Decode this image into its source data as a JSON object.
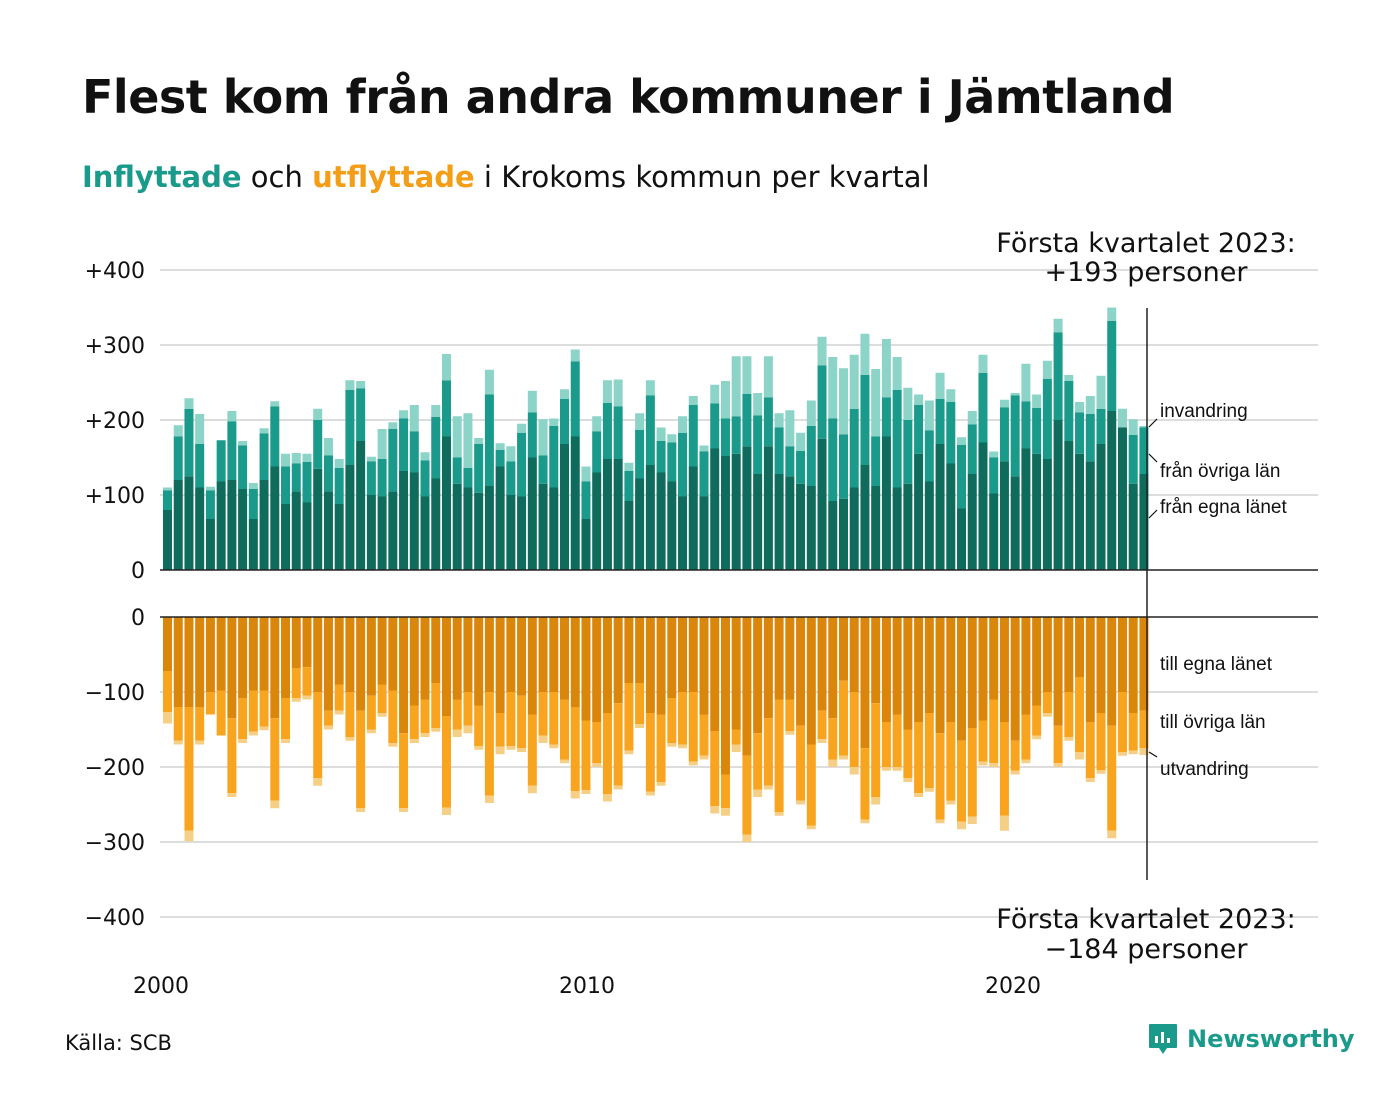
{
  "title": "Flest kom från andra kommuner i Jämtland",
  "subtitle": {
    "part1": "Inflyttade",
    "part2": " och ",
    "part3": "utflyttade",
    "part4": " i Krokoms kommun per kvartal"
  },
  "source": "Källa: SCB",
  "brand": "Newsworthy",
  "colors": {
    "in_own": "#0f6b5c",
    "in_other": "#1a9a8a",
    "in_imm": "#8cd3c8",
    "out_own": "#d9860b",
    "out_other": "#f9a41e",
    "out_emi": "#f6cf87",
    "grid": "#dddddd",
    "axis": "#222222"
  },
  "chart_data": {
    "type": "bar",
    "stacked": true,
    "x_start": "2000-Q1",
    "x_end": "2023-Q1",
    "x_ticks": [
      "2000",
      "2010",
      "2020"
    ],
    "y_ticks_top": [
      "+400",
      "+300",
      "+200",
      "+100",
      "0"
    ],
    "y_ticks_bottom": [
      "0",
      "−100",
      "−200",
      "−300",
      "−400"
    ],
    "ylim_top": [
      0,
      400
    ],
    "ylim_bottom": [
      -400,
      0
    ],
    "grid": true,
    "annotation_top": [
      "Första kvartalet 2023:",
      "+193 personer"
    ],
    "annotation_bottom": [
      "Första kvartalet 2023:",
      "−184 personer"
    ],
    "inflow_series_labels": [
      "invandring",
      "från övriga län",
      "från egna länet"
    ],
    "outflow_series_labels": [
      "till egna länet",
      "till övriga län",
      "utvandring"
    ],
    "inflow": {
      "from_own_county": [
        80,
        120,
        125,
        110,
        68,
        118,
        120,
        108,
        68,
        120,
        138,
        88,
        105,
        90,
        135,
        105,
        88,
        140,
        172,
        100,
        98,
        105,
        132,
        130,
        98,
        122,
        178,
        115,
        110,
        103,
        112,
        138,
        100,
        98,
        150,
        115,
        110,
        168,
        178,
        68,
        130,
        148,
        148,
        92,
        122,
        140,
        130,
        118,
        98,
        138,
        98,
        162,
        152,
        155,
        165,
        128,
        165,
        128,
        125,
        115,
        112,
        175,
        92,
        95,
        110,
        140,
        112,
        178,
        110,
        115,
        155,
        118,
        168,
        142,
        82,
        128,
        170,
        102,
        145,
        125,
        162,
        155,
        148,
        200,
        172,
        155,
        145,
        168,
        212,
        190,
        115,
        128
      ],
      "from_other_counties": [
        26,
        58,
        90,
        58,
        38,
        55,
        78,
        58,
        40,
        62,
        80,
        50,
        37,
        54,
        65,
        48,
        48,
        100,
        70,
        45,
        50,
        83,
        70,
        55,
        48,
        82,
        75,
        35,
        26,
        65,
        122,
        22,
        45,
        85,
        60,
        38,
        82,
        60,
        100,
        50,
        55,
        75,
        70,
        40,
        65,
        93,
        42,
        52,
        85,
        82,
        60,
        60,
        50,
        50,
        70,
        78,
        65,
        62,
        40,
        44,
        80,
        98,
        110,
        86,
        105,
        120,
        66,
        52,
        130,
        85,
        65,
        68,
        60,
        82,
        85,
        66,
        93,
        48,
        72,
        108,
        63,
        61,
        107,
        117,
        80,
        55,
        63,
        47,
        120,
        0,
        65,
        62
      ],
      "immigration": [
        4,
        15,
        14,
        40,
        5,
        0,
        14,
        6,
        8,
        7,
        7,
        17,
        14,
        11,
        15,
        23,
        12,
        13,
        10,
        6,
        40,
        9,
        11,
        35,
        11,
        16,
        35,
        55,
        73,
        8,
        33,
        9,
        20,
        12,
        29,
        48,
        10,
        13,
        16,
        20,
        20,
        30,
        36,
        11,
        22,
        20,
        18,
        11,
        22,
        12,
        8,
        25,
        50,
        80,
        50,
        30,
        55,
        19,
        48,
        24,
        34,
        38,
        82,
        88,
        72,
        55,
        90,
        78,
        44,
        43,
        14,
        40,
        35,
        17,
        10,
        18,
        24,
        8,
        10,
        3,
        50,
        18,
        24,
        18,
        8,
        14,
        24,
        44,
        18,
        25,
        21,
        2
      ]
    },
    "outflow": {
      "to_own_county": [
        72,
        120,
        120,
        120,
        100,
        98,
        135,
        108,
        98,
        98,
        135,
        108,
        68,
        67,
        100,
        125,
        90,
        100,
        125,
        105,
        90,
        98,
        155,
        118,
        110,
        88,
        132,
        110,
        100,
        118,
        100,
        128,
        100,
        105,
        130,
        100,
        100,
        110,
        120,
        138,
        140,
        128,
        115,
        88,
        88,
        128,
        130,
        108,
        100,
        100,
        130,
        152,
        210,
        150,
        185,
        155,
        135,
        110,
        110,
        145,
        170,
        125,
        135,
        85,
        100,
        175,
        115,
        140,
        130,
        150,
        140,
        128,
        155,
        140,
        165,
        148,
        138,
        110,
        140,
        165,
        130,
        118,
        100,
        145,
        100,
        80,
        140,
        128,
        145,
        100,
        128,
        125
      ],
      "to_other_counties": [
        55,
        45,
        165,
        45,
        30,
        60,
        100,
        55,
        55,
        48,
        110,
        55,
        40,
        38,
        115,
        20,
        35,
        60,
        130,
        45,
        38,
        70,
        100,
        45,
        45,
        60,
        122,
        40,
        45,
        54,
        138,
        45,
        72,
        70,
        95,
        58,
        70,
        80,
        112,
        93,
        55,
        108,
        110,
        90,
        55,
        105,
        90,
        60,
        70,
        93,
        55,
        100,
        45,
        20,
        105,
        75,
        90,
        150,
        42,
        100,
        108,
        38,
        55,
        100,
        100,
        95,
        125,
        60,
        70,
        65,
        95,
        100,
        115,
        105,
        108,
        118,
        55,
        85,
        125,
        40,
        60,
        40,
        28,
        50,
        60,
        100,
        75,
        76,
        140,
        80,
        50,
        50
      ],
      "emigration": [
        15,
        5,
        14,
        5,
        0,
        0,
        5,
        5,
        5,
        5,
        10,
        5,
        5,
        5,
        10,
        5,
        5,
        5,
        5,
        5,
        5,
        5,
        5,
        5,
        5,
        5,
        10,
        10,
        10,
        5,
        10,
        10,
        5,
        5,
        10,
        10,
        5,
        5,
        10,
        5,
        5,
        10,
        5,
        5,
        5,
        5,
        5,
        5,
        5,
        5,
        5,
        10,
        10,
        10,
        10,
        10,
        5,
        5,
        5,
        5,
        5,
        5,
        10,
        5,
        10,
        5,
        10,
        5,
        5,
        5,
        5,
        5,
        5,
        5,
        10,
        10,
        5,
        5,
        20,
        5,
        5,
        5,
        5,
        5,
        5,
        10,
        5,
        5,
        10,
        5,
        5,
        9
      ]
    }
  }
}
